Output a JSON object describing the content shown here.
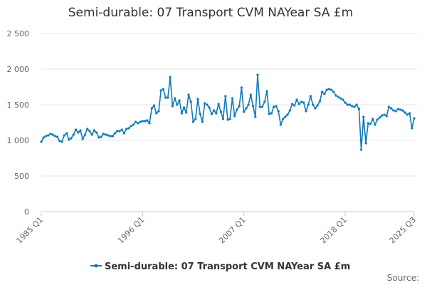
{
  "colors": {
    "series": "#0e7bb6",
    "grid": "#e6e6e6",
    "axis": "#cccccc"
  },
  "chart_data": {
    "type": "line",
    "title": "Semi-durable: 07 Transport CVM NAYear SA £m",
    "xlabel": "",
    "ylabel": "",
    "ylim": [
      0,
      2500
    ],
    "y_ticks": [
      "0",
      "500",
      "1 000",
      "1 500",
      "2 000",
      "2 500"
    ],
    "x_ticks": [
      "1985 Q1",
      "1996 Q1",
      "2007 Q1",
      "2018 Q1",
      "2025 Q3"
    ],
    "grid": true,
    "legend_position": "bottom",
    "source_label": "Source:",
    "series": [
      {
        "name": "Semi-durable: 07 Transport CVM NAYear SA £m",
        "x": [
          "1985 Q1",
          "1985 Q2",
          "1985 Q3",
          "1985 Q4",
          "1986 Q1",
          "1986 Q2",
          "1986 Q3",
          "1986 Q4",
          "1987 Q1",
          "1987 Q2",
          "1987 Q3",
          "1987 Q4",
          "1988 Q1",
          "1988 Q2",
          "1988 Q3",
          "1988 Q4",
          "1989 Q1",
          "1989 Q2",
          "1989 Q3",
          "1989 Q4",
          "1990 Q1",
          "1990 Q2",
          "1990 Q3",
          "1990 Q4",
          "1991 Q1",
          "1991 Q2",
          "1991 Q3",
          "1991 Q4",
          "1992 Q1",
          "1992 Q2",
          "1992 Q3",
          "1992 Q4",
          "1993 Q1",
          "1993 Q2",
          "1993 Q3",
          "1993 Q4",
          "1994 Q1",
          "1994 Q2",
          "1994 Q3",
          "1994 Q4",
          "1995 Q1",
          "1995 Q2",
          "1995 Q3",
          "1995 Q4",
          "1996 Q1",
          "1996 Q2",
          "1996 Q3",
          "1996 Q4",
          "1997 Q1",
          "1997 Q2",
          "1997 Q3",
          "1997 Q4",
          "1998 Q1",
          "1998 Q2",
          "1998 Q3",
          "1998 Q4",
          "1999 Q1",
          "1999 Q2",
          "1999 Q3",
          "1999 Q4",
          "2000 Q1",
          "2000 Q2",
          "2000 Q3",
          "2000 Q4",
          "2001 Q1",
          "2001 Q2",
          "2001 Q3",
          "2001 Q4",
          "2002 Q1",
          "2002 Q2",
          "2002 Q3",
          "2002 Q4",
          "2003 Q1",
          "2003 Q2",
          "2003 Q3",
          "2003 Q4",
          "2004 Q1",
          "2004 Q2",
          "2004 Q3",
          "2004 Q4",
          "2005 Q1",
          "2005 Q2",
          "2005 Q3",
          "2005 Q4",
          "2006 Q1",
          "2006 Q2",
          "2006 Q3",
          "2006 Q4",
          "2007 Q1",
          "2007 Q2",
          "2007 Q3",
          "2007 Q4",
          "2008 Q1",
          "2008 Q2",
          "2008 Q3",
          "2008 Q4",
          "2009 Q1",
          "2009 Q2",
          "2009 Q3",
          "2009 Q4",
          "2010 Q1",
          "2010 Q2",
          "2010 Q3",
          "2010 Q4",
          "2011 Q1",
          "2011 Q2",
          "2011 Q3",
          "2011 Q4",
          "2012 Q1",
          "2012 Q2",
          "2012 Q3",
          "2012 Q4",
          "2013 Q1",
          "2013 Q2",
          "2013 Q3",
          "2013 Q4",
          "2014 Q1",
          "2014 Q2",
          "2014 Q3",
          "2014 Q4",
          "2015 Q1",
          "2015 Q2",
          "2015 Q3",
          "2015 Q4",
          "2016 Q1",
          "2016 Q2",
          "2016 Q3",
          "2016 Q4",
          "2017 Q1",
          "2017 Q2",
          "2017 Q3",
          "2017 Q4",
          "2018 Q1",
          "2018 Q2",
          "2018 Q3",
          "2018 Q4",
          "2019 Q1",
          "2019 Q2",
          "2019 Q3",
          "2019 Q4",
          "2020 Q1",
          "2020 Q2",
          "2020 Q3",
          "2020 Q4",
          "2021 Q1",
          "2021 Q2",
          "2021 Q3",
          "2021 Q4",
          "2022 Q1",
          "2022 Q2",
          "2022 Q3",
          "2022 Q4",
          "2023 Q1",
          "2023 Q2",
          "2023 Q3",
          "2023 Q4",
          "2024 Q1",
          "2024 Q2",
          "2024 Q3",
          "2024 Q4",
          "2025 Q1",
          "2025 Q2",
          "2025 Q3"
        ],
        "values": [
          980,
          1040,
          1060,
          1070,
          1090,
          1080,
          1060,
          1050,
          990,
          980,
          1070,
          1100,
          1010,
          1030,
          1080,
          1150,
          1110,
          1140,
          1020,
          1080,
          1160,
          1130,
          1080,
          1140,
          1110,
          1040,
          1050,
          1090,
          1080,
          1070,
          1060,
          1060,
          1100,
          1130,
          1130,
          1150,
          1100,
          1160,
          1170,
          1200,
          1220,
          1260,
          1240,
          1260,
          1270,
          1270,
          1280,
          1240,
          1450,
          1490,
          1380,
          1410,
          1700,
          1720,
          1600,
          1600,
          1890,
          1480,
          1590,
          1500,
          1560,
          1380,
          1460,
          1390,
          1640,
          1540,
          1260,
          1300,
          1580,
          1370,
          1260,
          1520,
          1500,
          1460,
          1370,
          1420,
          1380,
          1510,
          1400,
          1300,
          1620,
          1290,
          1300,
          1590,
          1340,
          1430,
          1480,
          1740,
          1400,
          1450,
          1500,
          1640,
          1480,
          1330,
          1920,
          1470,
          1470,
          1540,
          1690,
          1370,
          1380,
          1470,
          1480,
          1410,
          1220,
          1300,
          1330,
          1360,
          1420,
          1510,
          1490,
          1570,
          1510,
          1540,
          1530,
          1410,
          1500,
          1620,
          1500,
          1450,
          1490,
          1550,
          1680,
          1650,
          1710,
          1720,
          1710,
          1680,
          1630,
          1610,
          1590,
          1570,
          1530,
          1500,
          1500,
          1480,
          1470,
          1500,
          1440,
          870,
          1330,
          960,
          1240,
          1230,
          1300,
          1220,
          1290,
          1320,
          1350,
          1360,
          1340,
          1470,
          1450,
          1420,
          1410,
          1440,
          1430,
          1420,
          1390,
          1360,
          1380,
          1170,
          1310
        ]
      }
    ]
  }
}
